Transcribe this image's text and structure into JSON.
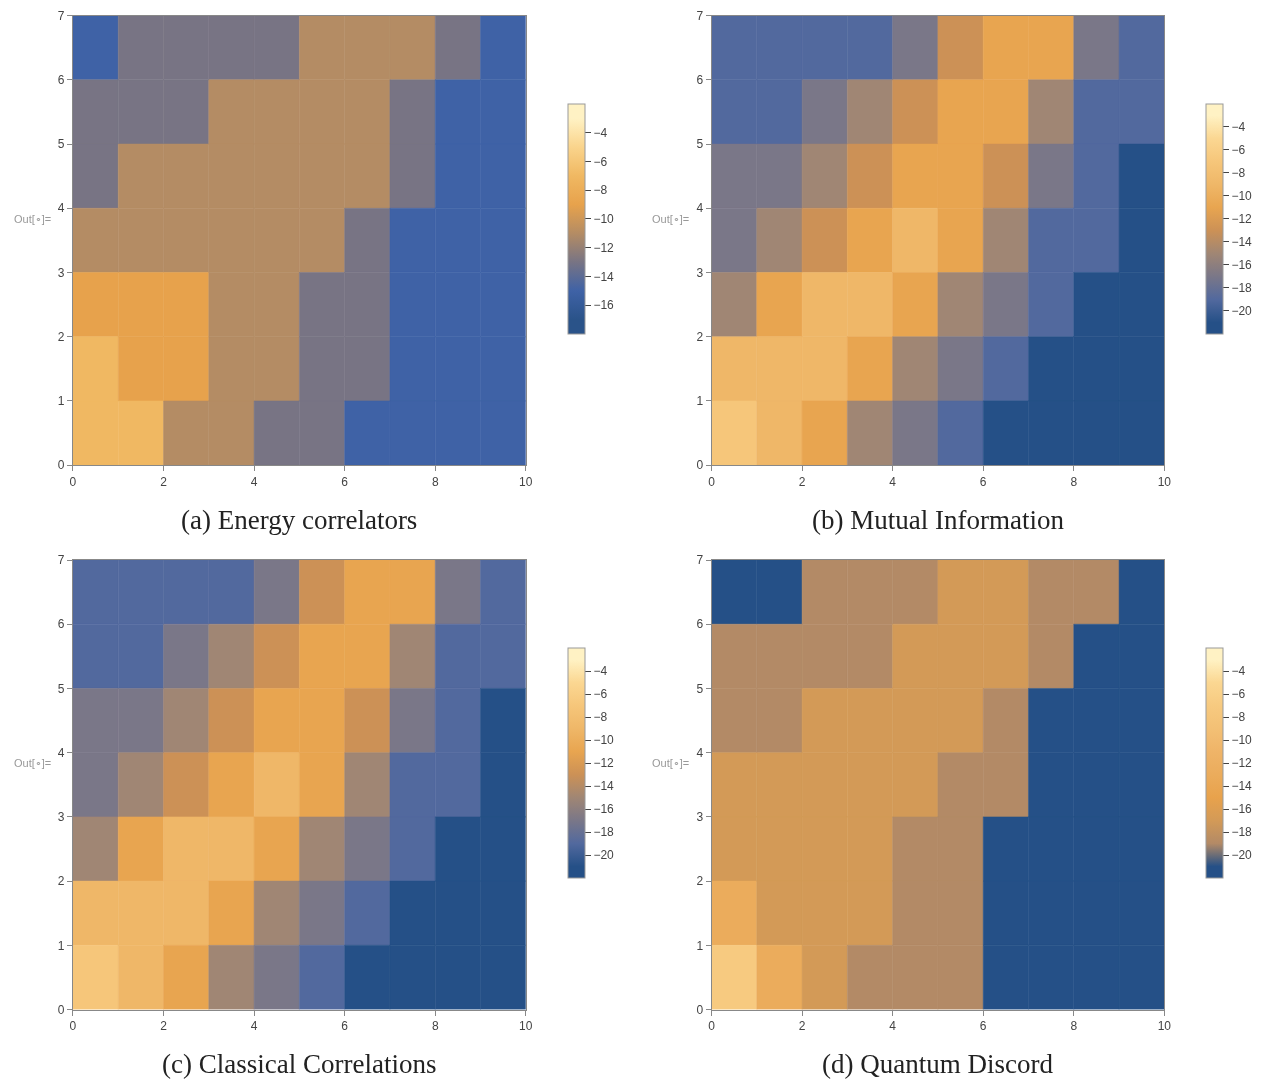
{
  "chart_data": [
    {
      "type": "heatmap",
      "title": "(a) Energy correlators",
      "annotations": [
        "Out[∘]="
      ],
      "xlim": [
        0,
        10
      ],
      "ylim": [
        0,
        7
      ],
      "xticks": [
        0,
        2,
        4,
        6,
        8,
        10
      ],
      "yticks": [
        0,
        1,
        2,
        3,
        4,
        5,
        6,
        7
      ],
      "clim": [
        -18,
        -2
      ],
      "cticks": [
        -4,
        -6,
        -8,
        -10,
        -12,
        -14,
        -16
      ],
      "colors": [
        "#2a5389",
        "#3f62a6",
        "#787484",
        "#b48c64",
        "#e7a24c",
        "#f0b862",
        "#fad48c",
        "#fff2c4"
      ],
      "cells": [
        [
          -15,
          -13,
          -13,
          -13,
          -13,
          -11,
          -11,
          -11,
          -13,
          -15
        ],
        [
          -13,
          -13,
          -13,
          -11,
          -11,
          -11,
          -11,
          -13,
          -15,
          -15
        ],
        [
          -13,
          -11,
          -11,
          -11,
          -11,
          -11,
          -11,
          -13,
          -15,
          -15
        ],
        [
          -11,
          -11,
          -11,
          -11,
          -11,
          -11,
          -13,
          -15,
          -15,
          -15
        ],
        [
          -9,
          -9,
          -9,
          -11,
          -11,
          -13,
          -13,
          -15,
          -15,
          -15
        ],
        [
          -7,
          -9,
          -9,
          -11,
          -11,
          -13,
          -13,
          -15,
          -15,
          -15
        ],
        [
          -7,
          -7,
          -11,
          -11,
          -13,
          -13,
          -15,
          -15,
          -15,
          -15
        ]
      ]
    },
    {
      "type": "heatmap",
      "title": "(b) Mutual Information",
      "annotations": [
        "Out[∘]="
      ],
      "xlim": [
        0,
        10
      ],
      "ylim": [
        0,
        7
      ],
      "xticks": [
        0,
        2,
        4,
        6,
        8,
        10
      ],
      "yticks": [
        0,
        1,
        2,
        3,
        4,
        5,
        6,
        7
      ],
      "clim": [
        -22,
        -2
      ],
      "cticks": [
        -4,
        -6,
        -8,
        -10,
        -12,
        -14,
        -16,
        -18,
        -20
      ],
      "colors": [
        "#255087",
        "#52699e",
        "#7a7788",
        "#a08674",
        "#cc9156",
        "#e8a550",
        "#efb768",
        "#f6c67a",
        "#fbd792",
        "#fff2c4"
      ],
      "cells": [
        [
          -19,
          -19,
          -19,
          -19,
          -17,
          -13,
          -11,
          -11,
          -17,
          -19
        ],
        [
          -19,
          -19,
          -17,
          -15,
          -13,
          -11,
          -11,
          -15,
          -19,
          -19
        ],
        [
          -17,
          -17,
          -15,
          -13,
          -11,
          -11,
          -13,
          -17,
          -19,
          -21
        ],
        [
          -17,
          -15,
          -13,
          -11,
          -9,
          -11,
          -15,
          -19,
          -19,
          -21
        ],
        [
          -15,
          -11,
          -9,
          -9,
          -11,
          -15,
          -17,
          -19,
          -21,
          -21
        ],
        [
          -9,
          -9,
          -9,
          -11,
          -15,
          -17,
          -19,
          -21,
          -21,
          -21
        ],
        [
          -7,
          -9,
          -11,
          -15,
          -17,
          -19,
          -21,
          -21,
          -21,
          -21
        ]
      ]
    },
    {
      "type": "heatmap",
      "title": "(c) Classical Correlations",
      "annotations": [
        "Out[∘]="
      ],
      "xlim": [
        0,
        10
      ],
      "ylim": [
        0,
        7
      ],
      "xticks": [
        0,
        2,
        4,
        6,
        8,
        10
      ],
      "yticks": [
        0,
        1,
        2,
        3,
        4,
        5,
        6,
        7
      ],
      "clim": [
        -22,
        -2
      ],
      "cticks": [
        -4,
        -6,
        -8,
        -10,
        -12,
        -14,
        -16,
        -18,
        -20
      ],
      "colors": [
        "#255087",
        "#52699e",
        "#7a7788",
        "#a08674",
        "#cc9156",
        "#e8a550",
        "#efb768",
        "#f6c67a",
        "#fbd792",
        "#fff2c4"
      ],
      "cells": [
        [
          -19,
          -19,
          -19,
          -19,
          -17,
          -13,
          -11,
          -11,
          -17,
          -19
        ],
        [
          -19,
          -19,
          -17,
          -15,
          -13,
          -11,
          -11,
          -15,
          -19,
          -19
        ],
        [
          -17,
          -17,
          -15,
          -13,
          -11,
          -11,
          -13,
          -17,
          -19,
          -21
        ],
        [
          -17,
          -15,
          -13,
          -11,
          -9,
          -11,
          -15,
          -19,
          -19,
          -21
        ],
        [
          -15,
          -11,
          -9,
          -9,
          -11,
          -15,
          -17,
          -19,
          -21,
          -21
        ],
        [
          -9,
          -9,
          -9,
          -11,
          -15,
          -17,
          -19,
          -21,
          -21,
          -21
        ],
        [
          -7,
          -9,
          -11,
          -15,
          -17,
          -19,
          -21,
          -21,
          -21,
          -21
        ]
      ]
    },
    {
      "type": "heatmap",
      "title": "(d) Quantum Discord",
      "annotations": [
        "Out[∘]="
      ],
      "xlim": [
        0,
        10
      ],
      "ylim": [
        0,
        7
      ],
      "xticks": [
        0,
        2,
        4,
        6,
        8,
        10
      ],
      "yticks": [
        0,
        1,
        2,
        3,
        4,
        5,
        6,
        7
      ],
      "clim": [
        -22,
        -2
      ],
      "cticks": [
        -4,
        -6,
        -8,
        -10,
        -12,
        -14,
        -16,
        -18,
        -20
      ],
      "colors": [
        "#255087",
        "#b38a66",
        "#d39a57",
        "#e8a24c",
        "#ebac5c",
        "#efb468",
        "#f3c075",
        "#f7ca80",
        "#fbd792",
        "#fff2c4"
      ],
      "cells": [
        [
          -21,
          -21,
          -19,
          -19,
          -19,
          -17,
          -17,
          -19,
          -19,
          -21
        ],
        [
          -19,
          -19,
          -19,
          -19,
          -17,
          -17,
          -17,
          -19,
          -21,
          -21
        ],
        [
          -19,
          -19,
          -17,
          -17,
          -17,
          -17,
          -19,
          -21,
          -21,
          -21
        ],
        [
          -17,
          -17,
          -17,
          -17,
          -17,
          -19,
          -19,
          -21,
          -21,
          -21
        ],
        [
          -17,
          -17,
          -17,
          -17,
          -19,
          -19,
          -21,
          -21,
          -21,
          -21
        ],
        [
          -13,
          -17,
          -17,
          -17,
          -19,
          -19,
          -21,
          -21,
          -21,
          -21
        ],
        [
          -7,
          -13,
          -17,
          -19,
          -19,
          -19,
          -21,
          -21,
          -21,
          -21
        ]
      ]
    }
  ]
}
